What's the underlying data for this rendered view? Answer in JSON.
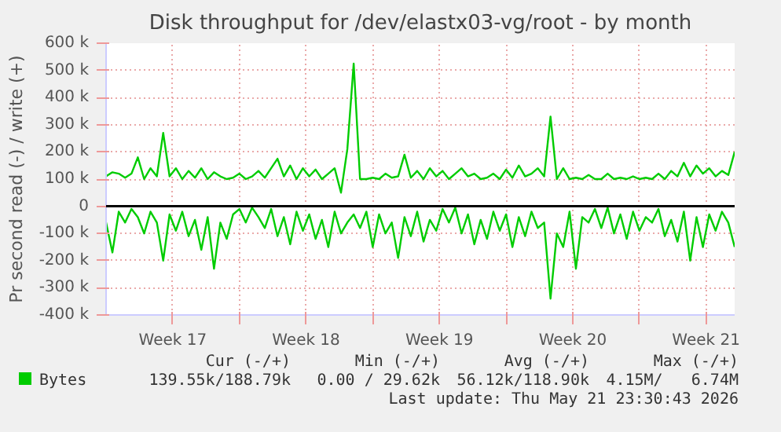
{
  "chart_data": {
    "type": "line",
    "title": "Disk throughput for /dev/elastx03-vg/root - by month",
    "ylabel": "Pr second read (-) / write (+)",
    "x": [
      "2026-04-19T00:00",
      "2026-04-19T08:00",
      "2026-04-19T16:00",
      "2026-04-20T00:00",
      "2026-04-20T08:00",
      "2026-04-20T16:00",
      "2026-04-21T00:00",
      "2026-04-21T08:00",
      "2026-04-21T16:00",
      "2026-04-22T00:00",
      "2026-04-22T08:00",
      "2026-04-22T16:00",
      "2026-04-23T00:00",
      "2026-04-23T08:00",
      "2026-04-23T16:00",
      "2026-04-24T00:00",
      "2026-04-24T08:00",
      "2026-04-24T16:00",
      "2026-04-25T00:00",
      "2026-04-25T08:00",
      "2026-04-25T16:00",
      "2026-04-26T00:00",
      "2026-04-26T08:00",
      "2026-04-26T16:00",
      "2026-04-27T00:00",
      "2026-04-27T08:00",
      "2026-04-27T16:00",
      "2026-04-28T00:00",
      "2026-04-28T08:00",
      "2026-04-28T16:00",
      "2026-04-29T00:00",
      "2026-04-29T08:00",
      "2026-04-29T16:00",
      "2026-04-30T00:00",
      "2026-04-30T08:00",
      "2026-04-30T16:00",
      "2026-05-01T00:00",
      "2026-05-01T08:00",
      "2026-05-01T16:00",
      "2026-05-02T00:00",
      "2026-05-02T08:00",
      "2026-05-02T16:00",
      "2026-05-03T00:00",
      "2026-05-03T08:00",
      "2026-05-03T16:00",
      "2026-05-04T00:00",
      "2026-05-04T08:00",
      "2026-05-04T16:00",
      "2026-05-05T00:00",
      "2026-05-05T08:00",
      "2026-05-05T16:00",
      "2026-05-06T00:00",
      "2026-05-06T08:00",
      "2026-05-06T16:00",
      "2026-05-07T00:00",
      "2026-05-07T08:00",
      "2026-05-07T16:00",
      "2026-05-08T00:00",
      "2026-05-08T08:00",
      "2026-05-08T16:00",
      "2026-05-09T00:00",
      "2026-05-09T08:00",
      "2026-05-09T16:00",
      "2026-05-10T00:00",
      "2026-05-10T08:00",
      "2026-05-10T16:00",
      "2026-05-11T00:00",
      "2026-05-11T08:00",
      "2026-05-11T16:00",
      "2026-05-12T00:00",
      "2026-05-12T08:00",
      "2026-05-12T16:00",
      "2026-05-13T00:00",
      "2026-05-13T08:00",
      "2026-05-13T16:00",
      "2026-05-14T00:00",
      "2026-05-14T08:00",
      "2026-05-14T16:00",
      "2026-05-15T00:00",
      "2026-05-15T08:00",
      "2026-05-15T16:00",
      "2026-05-16T00:00",
      "2026-05-16T08:00",
      "2026-05-16T16:00",
      "2026-05-17T00:00",
      "2026-05-17T08:00",
      "2026-05-17T16:00",
      "2026-05-18T00:00",
      "2026-05-18T08:00",
      "2026-05-18T16:00",
      "2026-05-19T00:00",
      "2026-05-19T08:00",
      "2026-05-19T16:00",
      "2026-05-20T00:00",
      "2026-05-20T08:00",
      "2026-05-20T16:00",
      "2026-05-21T00:00",
      "2026-05-21T08:00",
      "2026-05-21T16:00",
      "2026-05-22T00:00"
    ],
    "series": [
      {
        "name": "Bytes",
        "color": "#00cc00",
        "values": [
          110000,
          125000,
          120000,
          105000,
          120000,
          180000,
          100000,
          140000,
          110000,
          270000,
          110000,
          140000,
          100000,
          130000,
          105000,
          140000,
          100000,
          125000,
          110000,
          100000,
          105000,
          120000,
          100000,
          110000,
          130000,
          105000,
          140000,
          175000,
          110000,
          150000,
          100000,
          140000,
          110000,
          135000,
          100000,
          120000,
          140000,
          50000,
          210000,
          525000,
          100000,
          100000,
          105000,
          100000,
          120000,
          105000,
          110000,
          190000,
          105000,
          130000,
          100000,
          140000,
          110000,
          130000,
          100000,
          120000,
          140000,
          110000,
          120000,
          100000,
          105000,
          120000,
          100000,
          135000,
          105000,
          150000,
          110000,
          120000,
          140000,
          110000,
          330000,
          100000,
          140000,
          100000,
          105000,
          100000,
          115000,
          100000,
          100000,
          120000,
          100000,
          105000,
          100000,
          110000,
          100000,
          105000,
          100000,
          120000,
          100000,
          130000,
          110000,
          160000,
          110000,
          150000,
          120000,
          140000,
          110000,
          130000,
          115000,
          200000
        ]
      },
      {
        "color": "#00cc00",
        "values": [
          -60000,
          -170000,
          -20000,
          -60000,
          -10000,
          -40000,
          -100000,
          -20000,
          -60000,
          -200000,
          -30000,
          -90000,
          -20000,
          -110000,
          -50000,
          -160000,
          -40000,
          -230000,
          -60000,
          -120000,
          -30000,
          -10000,
          -60000,
          -5000,
          -40000,
          -80000,
          -10000,
          -110000,
          -40000,
          -140000,
          -20000,
          -90000,
          -30000,
          -120000,
          -50000,
          -150000,
          -20000,
          -100000,
          -60000,
          -30000,
          -80000,
          -20000,
          -150000,
          -30000,
          -100000,
          -60000,
          -190000,
          -40000,
          -110000,
          -20000,
          -130000,
          -50000,
          -90000,
          -10000,
          -60000,
          -5000,
          -100000,
          -30000,
          -140000,
          -50000,
          -120000,
          -20000,
          -90000,
          -30000,
          -150000,
          -40000,
          -110000,
          -20000,
          -80000,
          -60000,
          -340000,
          -100000,
          -150000,
          -20000,
          -230000,
          -40000,
          -60000,
          -10000,
          -80000,
          -5000,
          -100000,
          -30000,
          -120000,
          -20000,
          -90000,
          -40000,
          -60000,
          -10000,
          -110000,
          -50000,
          -130000,
          -20000,
          -200000,
          -40000,
          -150000,
          -30000,
          -90000,
          -20000,
          -60000,
          -150000
        ]
      }
    ],
    "xlim": [
      "2026-04-19T00:00",
      "2026-05-22T00:00"
    ],
    "xticks": [
      {
        "value": "2026-04-22T12:00",
        "label": "Week 17"
      },
      {
        "value": "2026-04-26",
        "label": null
      },
      {
        "value": "2026-04-29T12:00",
        "label": "Week 18"
      },
      {
        "value": "2026-05-03",
        "label": null
      },
      {
        "value": "2026-05-06T12:00",
        "label": "Week 19"
      },
      {
        "value": "2026-05-10",
        "label": null
      },
      {
        "value": "2026-05-13T12:00",
        "label": "Week 20"
      },
      {
        "value": "2026-05-17",
        "label": null
      },
      {
        "value": "2026-05-20T12:00",
        "label": "Week 21"
      }
    ],
    "ylim": [
      -400000,
      600000
    ],
    "yticks": [
      {
        "value": -400000,
        "label": "-400 k"
      },
      {
        "value": -300000,
        "label": "-300 k"
      },
      {
        "value": -200000,
        "label": "-200 k"
      },
      {
        "value": -100000,
        "label": "-100 k"
      },
      {
        "value": 0,
        "label": "0"
      },
      {
        "value": 100000,
        "label": "100 k"
      },
      {
        "value": 200000,
        "label": "200 k"
      },
      {
        "value": 300000,
        "label": "300 k"
      },
      {
        "value": 400000,
        "label": "400 k"
      },
      {
        "value": 500000,
        "label": "500 k"
      },
      {
        "value": 600000,
        "label": "600 k"
      }
    ],
    "ref_lines": [
      {
        "axis": "y",
        "value": 0,
        "color": "#000000"
      }
    ],
    "grid": true,
    "legend": "bottom",
    "marker": "none",
    "line_style": "solid",
    "annotations": [
      "Cur (-/+)",
      "Min (-/+)",
      "Avg (-/+)",
      "Max (-/+)",
      "139.55k/188.79k",
      "0.00 / 29.62k",
      "56.12k/118.90k",
      "4.15M/   6.74M",
      "Last update: Thu May 21 23:30:43 2026"
    ]
  }
}
